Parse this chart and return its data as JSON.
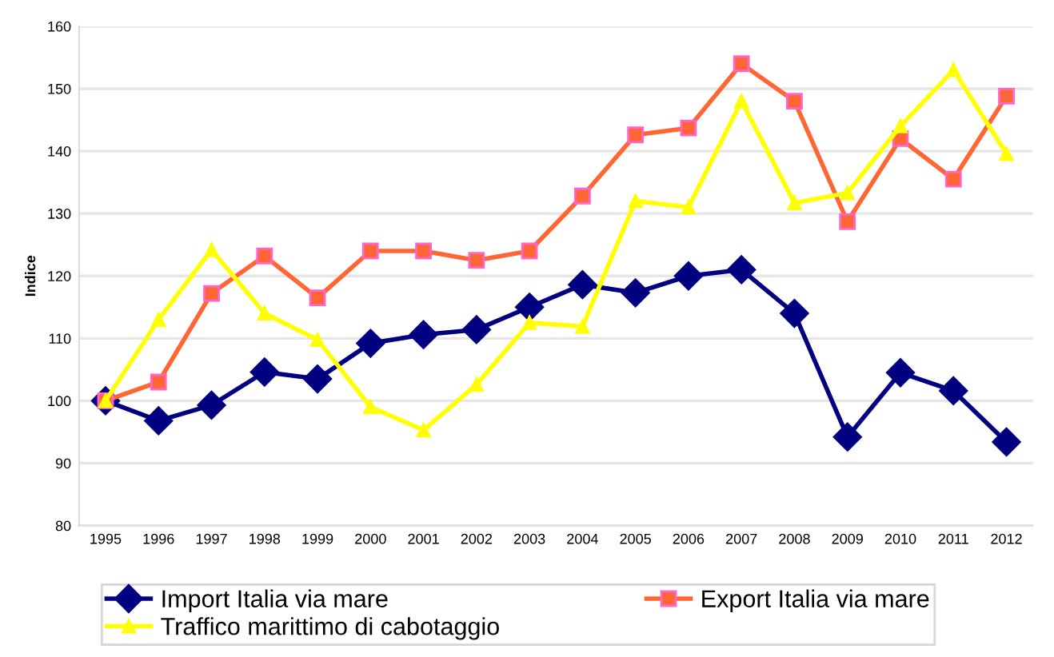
{
  "chart_data": {
    "type": "line",
    "ylabel": "Indice",
    "categories": [
      "1995",
      "1996",
      "1997",
      "1998",
      "1999",
      "2000",
      "2001",
      "2002",
      "2003",
      "2004",
      "2005",
      "2006",
      "2007",
      "2008",
      "2009",
      "2010",
      "2011",
      "2012"
    ],
    "series": [
      {
        "name": "Import Italia via mare",
        "color": "#000080",
        "marker": "diamond",
        "values": [
          100,
          96.8,
          99.3,
          104.6,
          103.5,
          109.2,
          110.6,
          111.4,
          115,
          118.6,
          117.3,
          120,
          121,
          114,
          94.2,
          104.5,
          101.6,
          93.4
        ]
      },
      {
        "name": "Export Italia via mare",
        "color": "#ff6633",
        "marker": "square",
        "values": [
          100,
          103,
          117.2,
          123.2,
          116.5,
          124,
          124,
          122.5,
          124,
          132.8,
          142.6,
          143.7,
          154,
          148,
          128.7,
          142,
          135.5,
          148.8
        ]
      },
      {
        "name": "Traffico marittimo di cabotaggio",
        "color": "#ffff00",
        "marker": "triangle",
        "values": [
          100,
          113,
          124.2,
          114,
          109.8,
          99,
          95.3,
          102.6,
          112.5,
          111.9,
          132,
          131,
          148,
          131.7,
          133.3,
          144,
          153,
          139.6
        ]
      }
    ],
    "ylim": [
      80,
      160
    ],
    "yticks": [
      80,
      90,
      100,
      110,
      120,
      130,
      140,
      150,
      160
    ],
    "grid": "y",
    "legend": "bottom",
    "line_style": "solid"
  }
}
